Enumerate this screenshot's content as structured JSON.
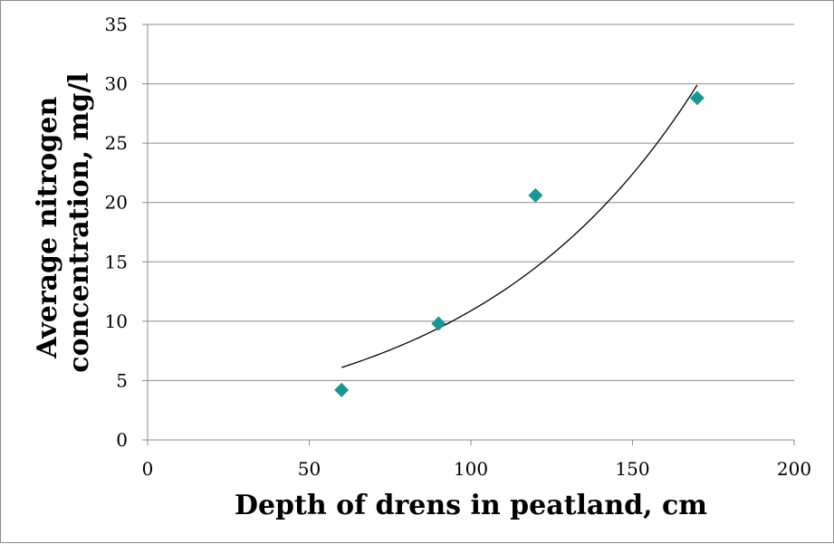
{
  "chart_data": {
    "type": "scatter",
    "title": "",
    "xlabel": "Depth of drens in peatland, cm",
    "ylabel_lines": [
      "Average nitrogen",
      "concentration, mg/l"
    ],
    "xlim": [
      0,
      200
    ],
    "ylim": [
      0,
      35
    ],
    "x_ticks": [
      0,
      50,
      100,
      150,
      200
    ],
    "y_ticks": [
      0,
      5,
      10,
      15,
      20,
      25,
      30,
      35
    ],
    "grid": "horizontal",
    "legend": "none",
    "series": [
      {
        "marker": "diamond",
        "color": "#1a9696",
        "points": [
          {
            "x": 60,
            "y": 4.2
          },
          {
            "x": 90,
            "y": 9.8
          },
          {
            "x": 120,
            "y": 20.6
          },
          {
            "x": 170,
            "y": 28.8
          }
        ]
      }
    ],
    "trendline": {
      "type": "exponential",
      "color": "#000000",
      "x_range": [
        60,
        170
      ],
      "start_y": 6.1,
      "end_y": 29.9
    }
  }
}
